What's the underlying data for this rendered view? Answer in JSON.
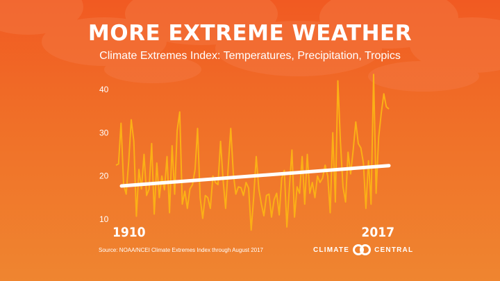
{
  "title": "MORE EXTREME WEATHER",
  "subtitle": "Climate Extremes Index: Temperatures, Precipitation, Tropics",
  "source": "Source: NOAA/NCEI Climate Extremes Index through August 2017",
  "brand": {
    "left": "CLIMATE",
    "right": "CENTRAL",
    "icon": "climate-central-logo-icon"
  },
  "colors": {
    "background": "#f15a22",
    "series": "#fbb016",
    "trend": "#ffffff"
  },
  "chart_data": {
    "type": "line",
    "title": "MORE EXTREME WEATHER",
    "subtitle": "Climate Extremes Index: Temperatures, Precipitation, Tropics",
    "xlabel": "",
    "ylabel": "",
    "xlim": [
      1910,
      2017
    ],
    "ylim": [
      10,
      45
    ],
    "yticks": [
      10,
      20,
      30,
      40
    ],
    "xtick_labels": [
      "1910",
      "2017"
    ],
    "grid": false,
    "legend": "none",
    "x": [
      1910,
      1911,
      1912,
      1913,
      1914,
      1915,
      1916,
      1917,
      1918,
      1919,
      1920,
      1921,
      1922,
      1923,
      1924,
      1925,
      1926,
      1927,
      1928,
      1929,
      1930,
      1931,
      1932,
      1933,
      1934,
      1935,
      1936,
      1937,
      1938,
      1939,
      1940,
      1941,
      1942,
      1943,
      1944,
      1945,
      1946,
      1947,
      1948,
      1949,
      1950,
      1951,
      1952,
      1953,
      1954,
      1955,
      1956,
      1957,
      1958,
      1959,
      1960,
      1961,
      1962,
      1963,
      1964,
      1965,
      1966,
      1967,
      1968,
      1969,
      1970,
      1971,
      1972,
      1973,
      1974,
      1975,
      1976,
      1977,
      1978,
      1979,
      1980,
      1981,
      1982,
      1983,
      1984,
      1985,
      1986,
      1987,
      1988,
      1989,
      1990,
      1991,
      1992,
      1993,
      1994,
      1995,
      1996,
      1997,
      1998,
      1999,
      2000,
      2001,
      2002,
      2003,
      2004,
      2005,
      2006,
      2007,
      2008,
      2009,
      2010,
      2011,
      2012,
      2013,
      2014,
      2015,
      2016,
      2017
    ],
    "series": [
      {
        "values": [
          22.5,
          22.8,
          32.2,
          18.0,
          15.8,
          23.5,
          33.0,
          28.0,
          10.7,
          21.5,
          17.0,
          25.0,
          15.5,
          17.0,
          27.5,
          11.2,
          23.0,
          15.0,
          20.0,
          16.8,
          24.5,
          11.5,
          27.0,
          15.8,
          30.5,
          34.8,
          13.5,
          16.5,
          12.5,
          17.0,
          18.0,
          21.5,
          31.0,
          15.0,
          10.2,
          15.5,
          15.0,
          12.5,
          20.0,
          18.5,
          18.0,
          28.0,
          19.0,
          12.5,
          22.0,
          31.0,
          20.5,
          15.8,
          17.5,
          17.3,
          15.5,
          18.5,
          17.2,
          7.5,
          15.0,
          24.5,
          17.0,
          13.5,
          10.8,
          15.5,
          15.8,
          10.5,
          14.5,
          16.0,
          11.0,
          19.5,
          21.3,
          8.2,
          17.5,
          26.0,
          10.5,
          17.5,
          16.0,
          24.5,
          13.5,
          25.0,
          16.0,
          18.5,
          15.0,
          20.0,
          18.5,
          19.5,
          22.5,
          20.0,
          11.5,
          30.0,
          14.0,
          42.0,
          28.0,
          17.5,
          14.0,
          25.5,
          20.5,
          26.0,
          32.5,
          27.5,
          26.5,
          23.0,
          12.5,
          23.5,
          13.5,
          43.5,
          16.0,
          29.0,
          34.5,
          39.0,
          36.0,
          35.5
        ]
      },
      {
        "type": "trend",
        "x": [
          1910,
          2017
        ],
        "values": [
          17.7,
          22.4
        ]
      }
    ]
  }
}
